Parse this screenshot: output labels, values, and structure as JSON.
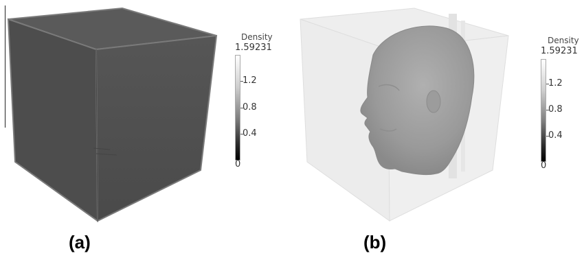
{
  "panels": [
    {
      "label": "(a)",
      "legend": {
        "title": "Density",
        "max": "1.59231",
        "ticks": [
          "1.2",
          "0.8",
          "0.4",
          "0"
        ]
      }
    },
    {
      "label": "(b)",
      "legend": {
        "title": "Density",
        "max": "1.59231",
        "ticks": [
          "1.2",
          "0.8",
          "0.4",
          "0"
        ]
      }
    }
  ],
  "colors": {
    "cube_solid": "#505050",
    "cube_transparent": "#ececec",
    "head": "#a0a0a0"
  }
}
